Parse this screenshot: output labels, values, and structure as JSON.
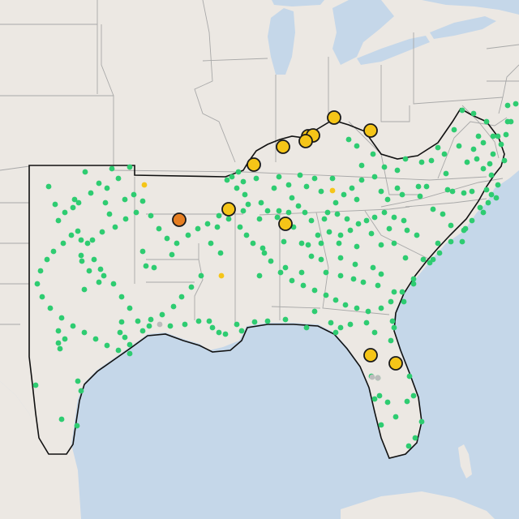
{
  "map": {
    "colors": {
      "land": "#ece8e3",
      "water": "#c5d7e9",
      "state_border": "#a8a8a8",
      "region_outline": "#111111",
      "marker_green": "#2ecc71",
      "marker_yellow": "#f5c518",
      "marker_orange": "#e67e22",
      "marker_gray": "#bcbcbc",
      "marker_stroke": "#1a1a1a"
    },
    "markers": {
      "large": [
        {
          "status": "orange"
        },
        {
          "status": "yellow"
        },
        {
          "status": "yellow"
        },
        {
          "status": "yellow"
        },
        {
          "status": "yellow"
        },
        {
          "status": "yellow"
        },
        {
          "status": "yellow"
        },
        {
          "status": "yellow"
        },
        {
          "status": "yellow"
        },
        {
          "status": "yellow"
        },
        {
          "status": "yellow"
        },
        {
          "status": "yellow"
        }
      ],
      "small_yellow_count": 3,
      "small_gray_count": 3,
      "small_green_count": 320
    }
  }
}
